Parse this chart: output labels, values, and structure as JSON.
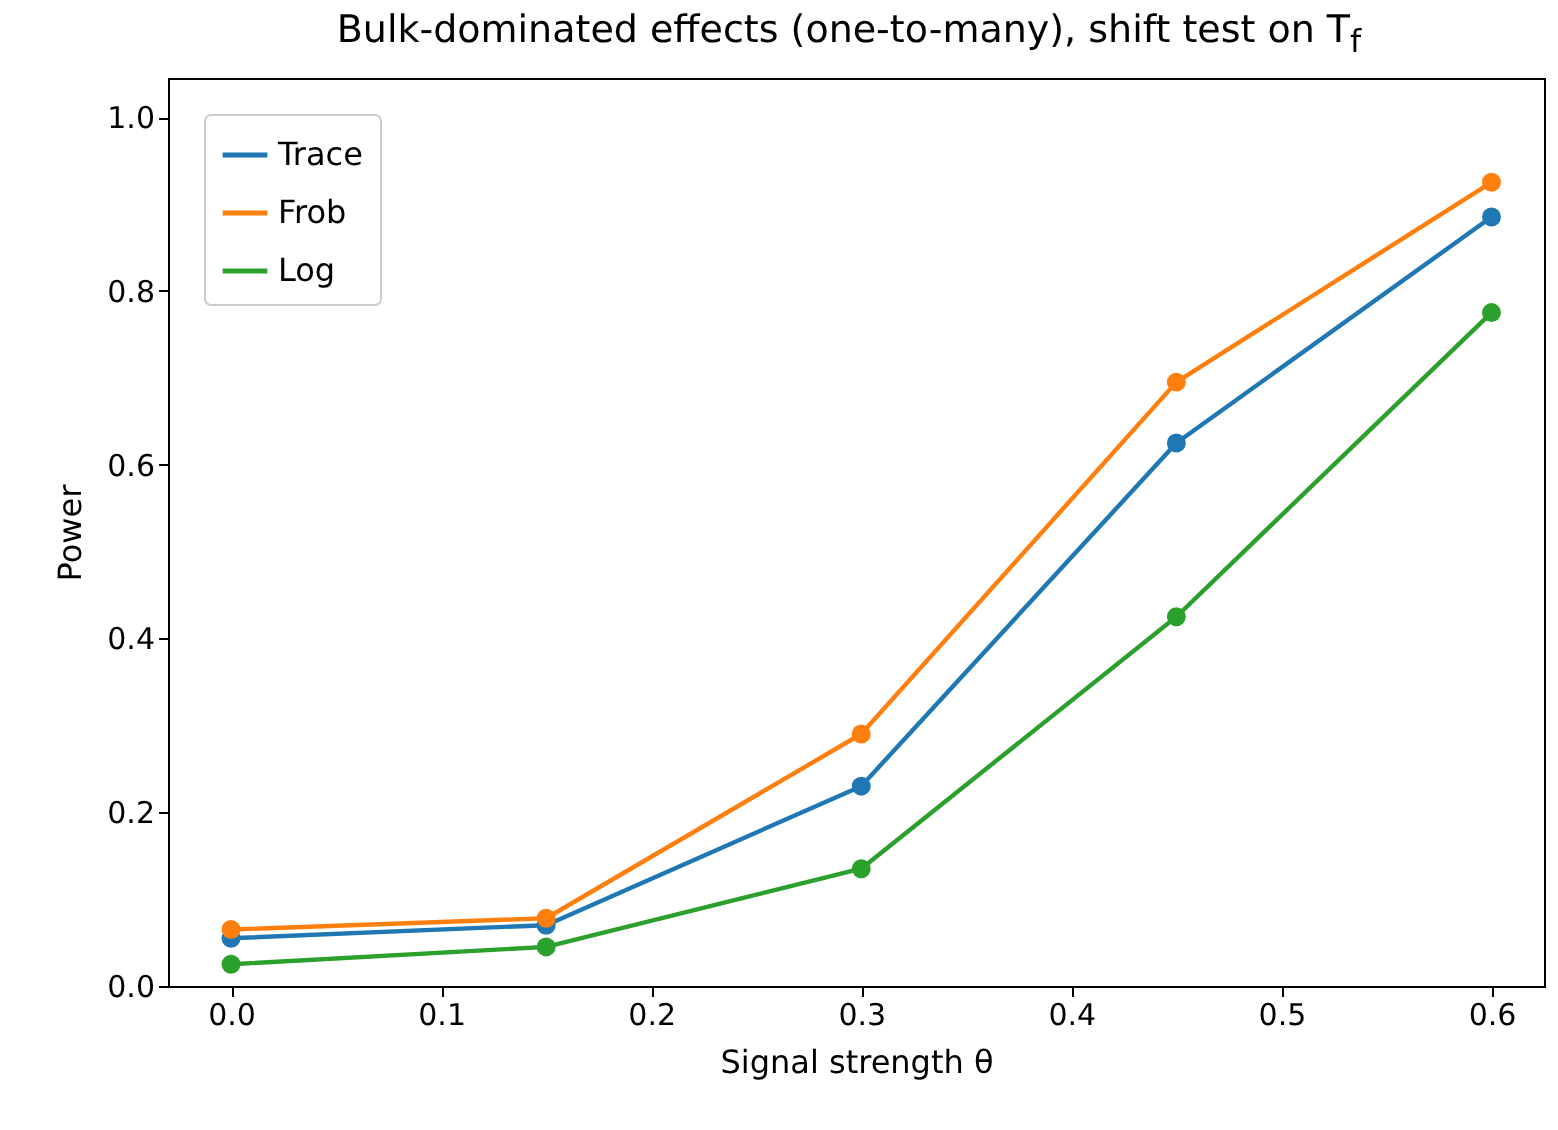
{
  "chart_data": {
    "type": "line",
    "title": "Bulk-dominated effects (one-to-many), shift test on T$_{f}$",
    "xlabel": "Signal strength θ",
    "ylabel": "Power",
    "x": [
      0.0,
      0.15,
      0.3,
      0.45,
      0.6
    ],
    "series": [
      {
        "name": "Trace",
        "color": "#1f77b4",
        "values": [
          0.055,
          0.07,
          0.23,
          0.625,
          0.885
        ]
      },
      {
        "name": "Frob",
        "color": "#ff7f0e",
        "values": [
          0.065,
          0.078,
          0.29,
          0.695,
          0.925
        ]
      },
      {
        "name": "Log",
        "color": "#2ca02c",
        "values": [
          0.025,
          0.045,
          0.135,
          0.425,
          0.775
        ]
      }
    ],
    "xlim": [
      -0.03,
      0.625
    ],
    "ylim": [
      0,
      1.045
    ],
    "xticks": [
      {
        "value": 0,
        "label": "0.0"
      },
      0.1,
      0.2,
      0.3,
      0.4,
      0.5,
      0.6
    ],
    "yticks": [
      {
        "value": 0,
        "label": "0.0"
      },
      0.2,
      0.4,
      0.6,
      0.8,
      {
        "value": 1,
        "label": "1.0"
      }
    ],
    "legend": "top left",
    "marker": "circle",
    "line_style": "solid",
    "grid": false
  }
}
